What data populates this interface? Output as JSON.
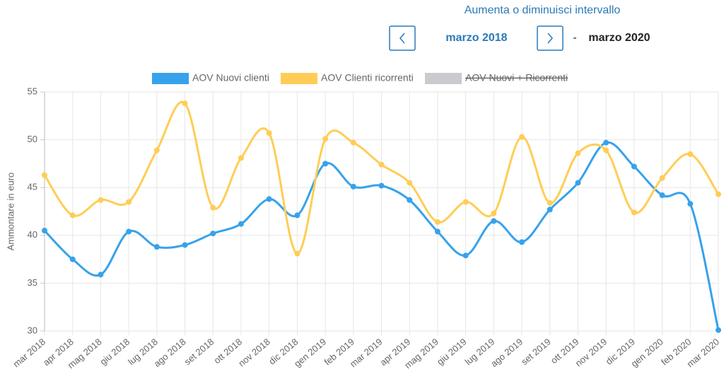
{
  "header": {
    "title": "Aumenta o diminuisci intervallo",
    "start": "marzo 2018",
    "separator": "-",
    "end": "marzo 2020"
  },
  "chart_data": {
    "type": "line",
    "y_label": "Ammontare in euro",
    "categories": [
      "mar 2018",
      "apr 2018",
      "mag 2018",
      "giu 2018",
      "lug 2018",
      "ago 2018",
      "set 2018",
      "ott 2018",
      "nov 2018",
      "dic 2018",
      "gen 2019",
      "feb 2019",
      "mar 2019",
      "apr 2019",
      "mag 2019",
      "giu 2019",
      "lug 2019",
      "ago 2019",
      "set 2019",
      "ott 2019",
      "nov 2019",
      "dic 2019",
      "gen 2020",
      "feb 2020",
      "mar 2020"
    ],
    "series": [
      {
        "name": "AOV Nuovi clienti",
        "color": "#36a2eb",
        "values": [
          40.5,
          37.5,
          35.9,
          40.4,
          38.8,
          39.0,
          40.2,
          41.2,
          43.8,
          42.1,
          47.5,
          45.1,
          45.2,
          43.7,
          40.4,
          37.9,
          41.5,
          39.3,
          42.7,
          45.5,
          49.7,
          47.2,
          44.2,
          43.3,
          30.1
        ]
      },
      {
        "name": "AOV Clienti ricorrenti",
        "color": "#ffcd56",
        "values": [
          46.3,
          42.1,
          43.7,
          43.5,
          48.9,
          53.8,
          42.9,
          48.1,
          50.7,
          38.1,
          50.1,
          49.7,
          47.4,
          45.5,
          41.4,
          43.5,
          42.3,
          50.3,
          43.4,
          48.6,
          48.9,
          42.4,
          46.0,
          48.5,
          44.3
        ]
      },
      {
        "name": "AOV Nuovi + Ricorrenti",
        "color": "#c9cbcf",
        "hidden": true
      }
    ],
    "ylim": [
      30,
      55
    ],
    "yticks": [
      30,
      35,
      40,
      45,
      50,
      55
    ],
    "grid": true,
    "smooth": true
  }
}
